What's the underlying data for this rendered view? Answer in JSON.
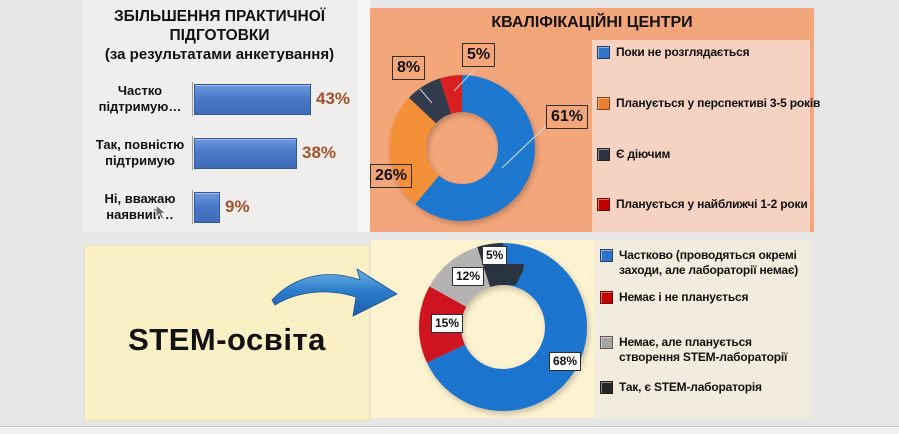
{
  "stem": {
    "label": "STEM-освіта"
  },
  "chart_data": [
    {
      "id": "practical-training-bar",
      "type": "bar",
      "orientation": "horizontal",
      "title": "ЗБІЛЬШЕННЯ ПРАКТИЧНОЇ ПІДГОТОВКИ",
      "subtitle": "(за результатами анкетування)",
      "categories": [
        "Частко\nпідтримую…",
        "Так, повністю\nпідтримую",
        "Ні, вважаю\nнаявний…"
      ],
      "values": [
        43,
        38,
        9
      ],
      "value_labels": [
        "43%",
        "38%",
        "9%"
      ],
      "xlim": [
        0,
        50
      ],
      "grid": false,
      "bar_color": "#4a79c8",
      "value_label_color": "#a4512c"
    },
    {
      "id": "qualification-centers-donut",
      "type": "pie",
      "subtype": "donut",
      "title": "КВАЛІФІКАЦІЙНІ ЦЕНТРИ",
      "legend_position": "right",
      "value_labels": [
        "61%",
        "26%",
        "8%",
        "5%"
      ],
      "slices": [
        {
          "label": "Поки не розглядається",
          "value": 61,
          "color": "#1e78d0",
          "marker_color": "#2e75c9"
        },
        {
          "label": "Планується у перспективі 3-5 років",
          "value": 26,
          "color": "#f39038",
          "marker_color": "#ed7d31"
        },
        {
          "label": "Є діючим",
          "value": 8,
          "color": "#323b4c",
          "marker_color": "#2a3342"
        },
        {
          "label": "Планується у найближчі 1-2 роки",
          "value": 5,
          "color": "#d92020",
          "marker_color": "#c00000"
        }
      ]
    },
    {
      "id": "stem-education-donut",
      "type": "pie",
      "subtype": "donut",
      "legend_position": "right",
      "value_labels": [
        "68%",
        "15%",
        "12%",
        "5%"
      ],
      "slices": [
        {
          "label": "Частково (проводяться окремі заходи, але лабораторії немає)",
          "value": 68,
          "color": "#1b74ce",
          "marker_color": "#2e75c9"
        },
        {
          "label": "Немає і не планується",
          "value": 15,
          "color": "#ce1421",
          "marker_color": "#c00000"
        },
        {
          "label": "Немає, але планується створення STEM-лабораторії",
          "value": 12,
          "color": "#b5b3b1",
          "marker_color": "#a6a6a6"
        },
        {
          "label": "Так, є STEM-лабораторія",
          "value": 5,
          "color": "#2a3340",
          "marker_color": "#262626"
        }
      ]
    }
  ]
}
